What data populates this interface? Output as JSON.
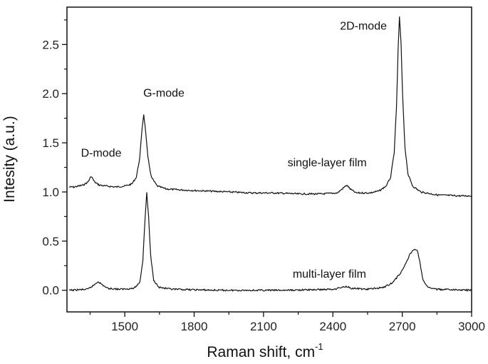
{
  "chart_data": {
    "type": "line",
    "title": "",
    "xlabel": "Raman shift, cm",
    "xlabel_superscript": "-1",
    "ylabel": "Intesity (a.u.)",
    "xlim": [
      1250,
      3000
    ],
    "ylim": [
      -0.22,
      2.88
    ],
    "xticks": [
      1500,
      1800,
      2100,
      2400,
      2700,
      3000
    ],
    "xtick_labels": [
      "1500",
      "1800",
      "2100",
      "2400",
      "2700",
      "3000"
    ],
    "yticks": [
      0.0,
      0.5,
      1.0,
      1.5,
      2.0,
      2.5
    ],
    "ytick_labels": [
      "0.0",
      "0.5",
      "1.0",
      "1.5",
      "2.0",
      "2.5"
    ],
    "grid": false,
    "series": [
      {
        "name": "single-layer film",
        "color": "#111111",
        "x": [
          1260,
          1280,
          1300,
          1320,
          1340,
          1355,
          1370,
          1390,
          1420,
          1460,
          1500,
          1530,
          1550,
          1565,
          1575,
          1582,
          1590,
          1600,
          1615,
          1640,
          1680,
          1750,
          1850,
          1950,
          2050,
          2150,
          2250,
          2350,
          2420,
          2445,
          2460,
          2475,
          2500,
          2560,
          2600,
          2630,
          2650,
          2665,
          2675,
          2682,
          2688,
          2695,
          2702,
          2712,
          2725,
          2745,
          2780,
          2850,
          2950,
          3000
        ],
        "y": [
          1.05,
          1.05,
          1.06,
          1.07,
          1.1,
          1.16,
          1.1,
          1.07,
          1.06,
          1.05,
          1.06,
          1.08,
          1.15,
          1.35,
          1.65,
          1.79,
          1.62,
          1.35,
          1.15,
          1.06,
          1.03,
          1.02,
          1.01,
          1.0,
          0.99,
          0.99,
          0.98,
          0.98,
          0.99,
          1.04,
          1.07,
          1.03,
          0.99,
          0.99,
          1.01,
          1.06,
          1.15,
          1.4,
          1.85,
          2.45,
          2.78,
          2.5,
          1.95,
          1.45,
          1.18,
          1.06,
          1.0,
          0.97,
          0.96,
          0.96
        ]
      },
      {
        "name": "multi-layer film",
        "color": "#111111",
        "x": [
          1260,
          1340,
          1365,
          1385,
          1400,
          1425,
          1480,
          1540,
          1565,
          1578,
          1587,
          1595,
          1603,
          1612,
          1625,
          1650,
          1700,
          1900,
          2200,
          2400,
          2440,
          2460,
          2480,
          2550,
          2620,
          2660,
          2700,
          2730,
          2745,
          2765,
          2775,
          2790,
          2810,
          2850,
          3000
        ],
        "y": [
          0.0,
          0.01,
          0.05,
          0.09,
          0.06,
          0.02,
          0.01,
          0.02,
          0.08,
          0.3,
          0.7,
          0.99,
          0.75,
          0.35,
          0.1,
          0.03,
          0.01,
          0.0,
          0.0,
          0.01,
          0.03,
          0.04,
          0.02,
          0.01,
          0.03,
          0.08,
          0.2,
          0.35,
          0.41,
          0.41,
          0.3,
          0.1,
          0.03,
          0.01,
          0.0
        ]
      }
    ],
    "annotations": [
      {
        "text": "D-mode",
        "x": 1398,
        "y": 1.36
      },
      {
        "text": "G-mode",
        "x": 1669,
        "y": 1.97
      },
      {
        "text": "2D-mode",
        "x": 2532,
        "y": 2.65
      },
      {
        "text": "single-layer film",
        "x": 2375,
        "y": 1.26
      },
      {
        "text": "multi-layer film",
        "x": 2385,
        "y": 0.13
      }
    ]
  }
}
